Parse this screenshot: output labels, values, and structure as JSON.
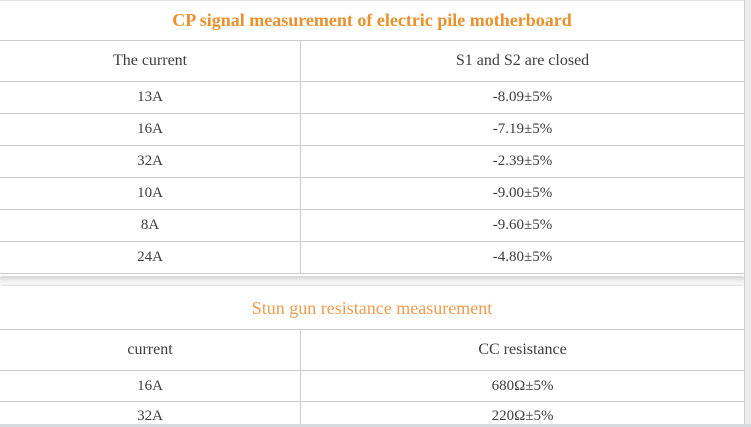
{
  "page": {
    "background_color": "#ececec",
    "table_border_color": "#cccccc",
    "text_color": "#3d3d3d",
    "bottom_edge_color": "#d4dbe1"
  },
  "tables": [
    {
      "title": "CP signal measurement of electric pile motherboard",
      "title_color": "#e8912d",
      "columns": [
        "The current",
        "S1 and S2 are closed"
      ],
      "rows": [
        [
          "13A",
          "-8.09±5%"
        ],
        [
          "16A",
          "-7.19±5%"
        ],
        [
          "32A",
          "-2.39±5%"
        ],
        [
          "10A",
          "-9.00±5%"
        ],
        [
          "8A",
          "-9.60±5%"
        ],
        [
          "24A",
          "-4.80±5%"
        ]
      ]
    },
    {
      "title": "Stun gun resistance measurement",
      "title_color": "#ee9c50",
      "columns": [
        "current",
        "CC resistance"
      ],
      "rows": [
        [
          "16A",
          "680Ω±5%"
        ],
        [
          "32A",
          "220Ω±5%"
        ]
      ]
    }
  ]
}
